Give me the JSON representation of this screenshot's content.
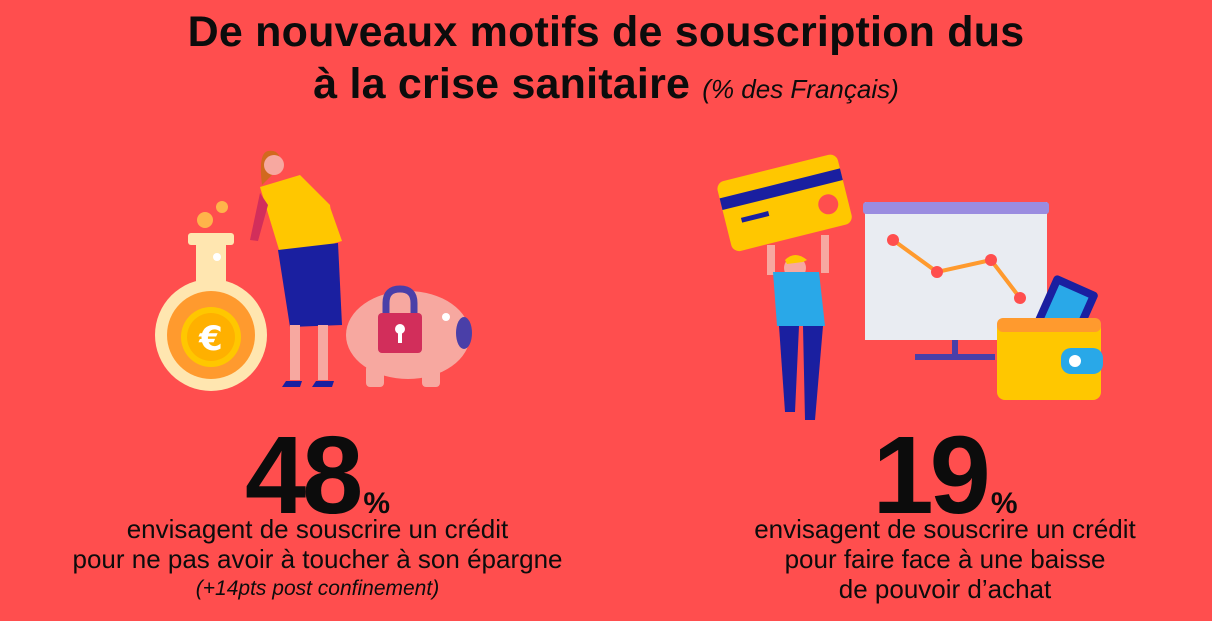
{
  "title": {
    "line1": "De nouveaux motifs de souscription dus",
    "line2": "à la crise sanitaire",
    "subtitle": "(% des Français)"
  },
  "left": {
    "value": "48",
    "unit": "%",
    "desc_line1": "envisagent de souscrire un crédit",
    "desc_line2": "pour ne pas avoir à toucher à son épargne",
    "note": "(+14pts post confinement)",
    "coin_symbol": "€"
  },
  "right": {
    "value": "19",
    "unit": "%",
    "desc_line1": "envisagent de souscrire un crédit",
    "desc_line2": "pour faire face à une baisse",
    "desc_line3": "de pouvoir d’achat"
  },
  "colors": {
    "background": "#FF4E4E",
    "yellow": "#FFC700",
    "blue": "#1A1FA0",
    "pink": "#F7A8A0",
    "light_blue": "#29A8E8"
  }
}
